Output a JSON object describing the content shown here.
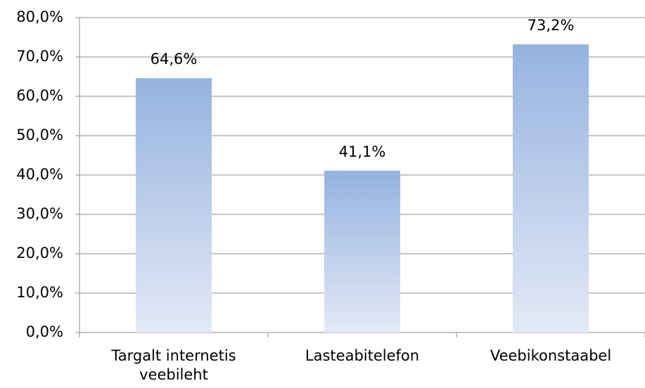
{
  "chart_data": {
    "type": "bar",
    "categories": [
      "Targalt internetis veebileht",
      "Lasteabitelefon",
      "Veebikonstaabel"
    ],
    "values": [
      64.6,
      41.1,
      73.2
    ],
    "value_labels": [
      "64,6%",
      "41,1%",
      "73,2%"
    ],
    "color": "#95b3e0",
    "ylim": [
      0,
      80
    ],
    "yticks": [
      {
        "value": 0,
        "label": "0,0%"
      },
      {
        "value": 10,
        "label": "10,0%"
      },
      {
        "value": 20,
        "label": "20,0%"
      },
      {
        "value": 30,
        "label": "30,0%"
      },
      {
        "value": 40,
        "label": "40,0%"
      },
      {
        "value": 50,
        "label": "50,0%"
      },
      {
        "value": 60,
        "label": "60,0%"
      },
      {
        "value": 70,
        "label": "70,0%"
      },
      {
        "value": 80,
        "label": "80,0%"
      }
    ],
    "grid": true
  }
}
